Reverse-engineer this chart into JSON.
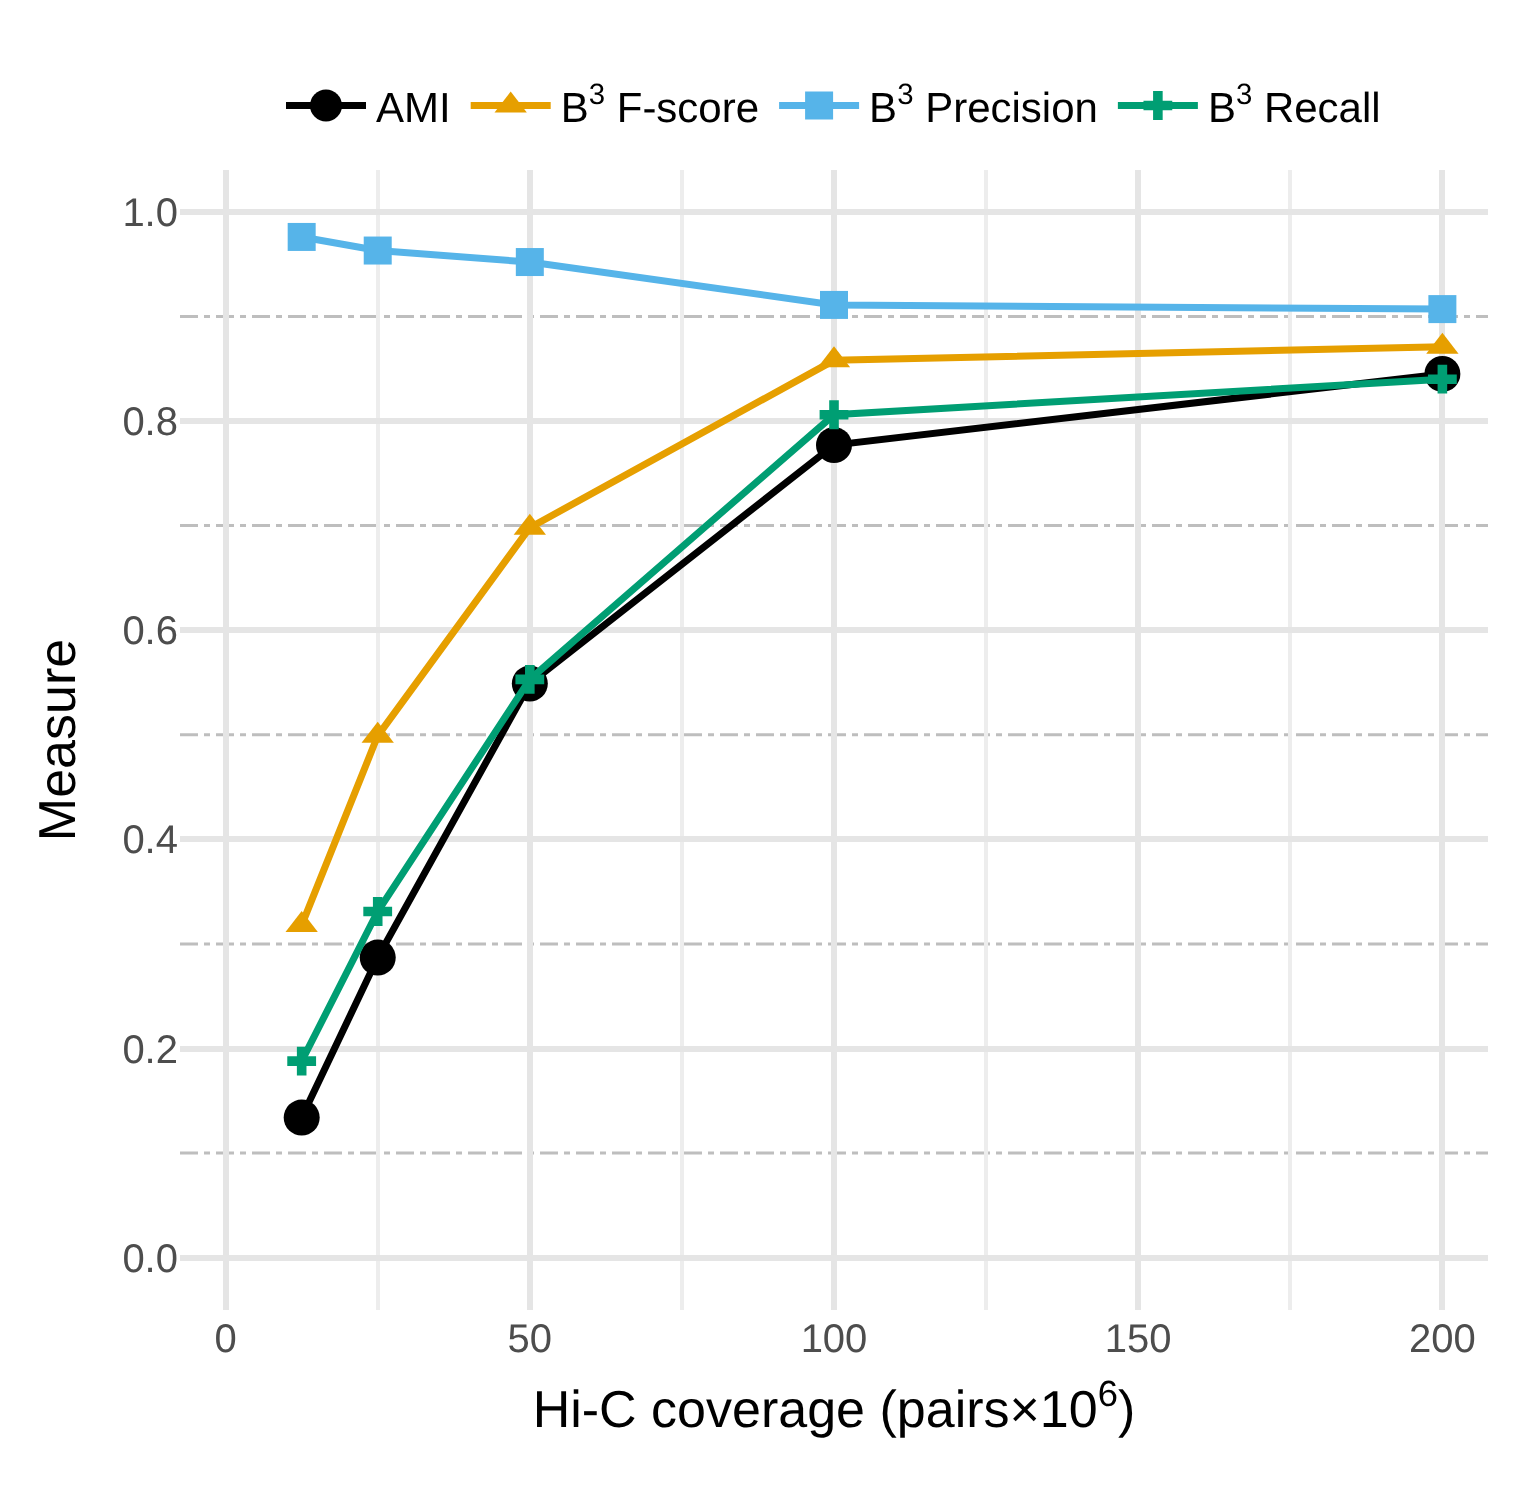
{
  "chart_data": {
    "type": "line",
    "xlabel": "Hi-C coverage (pairs×10$^{6}$)",
    "ylabel": "Measure",
    "x": [
      12.5,
      25,
      50,
      100,
      200
    ],
    "series": [
      {
        "name": "AMI",
        "color": "#000000",
        "marker": "circle",
        "values": [
          0.134,
          0.287,
          0.549,
          0.777,
          0.845
        ]
      },
      {
        "name": "B$^{3}$ F-score",
        "color": "#e69f00",
        "marker": "triangle",
        "values": [
          0.318,
          0.499,
          0.698,
          0.858,
          0.871
        ]
      },
      {
        "name": "B$^{3}$ Precision",
        "color": "#56b4e9",
        "marker": "square",
        "values": [
          0.976,
          0.963,
          0.952,
          0.911,
          0.907
        ]
      },
      {
        "name": "B$^{3}$ Recall",
        "color": "#009e73",
        "marker": "cross",
        "values": [
          0.188,
          0.331,
          0.553,
          0.806,
          0.84
        ]
      }
    ],
    "xlim": [
      -7.5,
      207.5
    ],
    "xticks": [
      0,
      50,
      100,
      150,
      200
    ],
    "ylim": [
      -0.05,
      1.04
    ],
    "yticks": [
      {
        "value": 0,
        "label": "0.0"
      },
      0.2,
      0.4,
      0.6,
      0.8,
      {
        "value": 1,
        "label": "1.0"
      }
    ],
    "ref_lines": [
      {
        "axis": "y",
        "value": 0.1,
        "color": "#bebebe",
        "line_style": "dashdot"
      },
      {
        "axis": "y",
        "value": 0.3,
        "color": "#bebebe",
        "line_style": "dashdot"
      },
      {
        "axis": "y",
        "value": 0.5,
        "color": "#bebebe",
        "line_style": "dashdot"
      },
      {
        "axis": "y",
        "value": 0.7,
        "color": "#bebebe",
        "line_style": "dashdot"
      },
      {
        "axis": "y",
        "value": 0.9,
        "color": "#bebebe",
        "line_style": "dashdot"
      }
    ],
    "grid": true,
    "legend": "top",
    "line_style": "solid"
  }
}
